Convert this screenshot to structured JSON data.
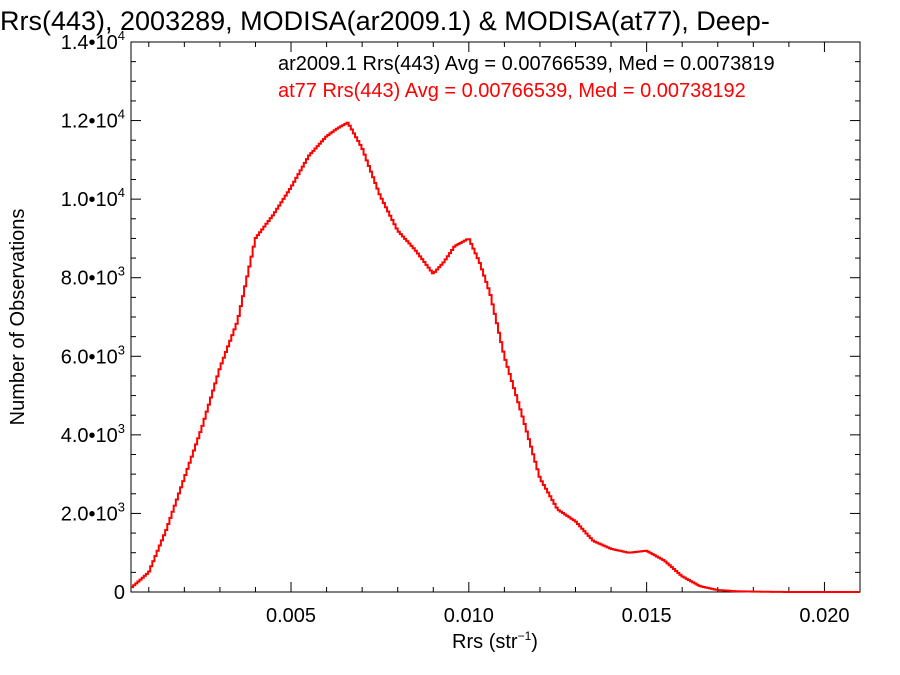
{
  "chart_data": {
    "type": "line",
    "title": "Rrs(443), 2003289, MODISA(ar2009.1) & MODISA(at77), Deep-",
    "xlabel_main": "Rrs (str",
    "xlabel_sup": "−1",
    "xlabel_end": ")",
    "ylabel": "Number of Observations",
    "xlim": [
      0.0005,
      0.021
    ],
    "ylim": [
      0,
      14000
    ],
    "grid": false,
    "x_ticks": [
      {
        "value": 0.005,
        "label": "0.005"
      },
      {
        "value": 0.01,
        "label": "0.010"
      },
      {
        "value": 0.015,
        "label": "0.015"
      },
      {
        "value": 0.02,
        "label": "0.020"
      }
    ],
    "y_ticks": [
      {
        "value": 0,
        "mant": "0",
        "exp": ""
      },
      {
        "value": 2000,
        "mant": "2.0•10",
        "exp": "3"
      },
      {
        "value": 4000,
        "mant": "4.0•10",
        "exp": "3"
      },
      {
        "value": 6000,
        "mant": "6.0•10",
        "exp": "3"
      },
      {
        "value": 8000,
        "mant": "8.0•10",
        "exp": "3"
      },
      {
        "value": 10000,
        "mant": "1.0•10",
        "exp": "4"
      },
      {
        "value": 12000,
        "mant": "1.2•10",
        "exp": "4"
      },
      {
        "value": 14000,
        "mant": "1.4•10",
        "exp": "4"
      }
    ],
    "annotations": [
      {
        "text": "ar2009.1 Rrs(443) Avg = 0.00766539, Med = 0.0073819",
        "color": "#000000"
      },
      {
        "text": "at77 Rrs(443) Avg = 0.00766539, Med = 0.00738192",
        "color": "#ff0000"
      }
    ],
    "series": [
      {
        "color": "#ff0000",
        "x": [
          0.0005,
          0.001,
          0.0015,
          0.002,
          0.0025,
          0.003,
          0.0035,
          0.004,
          0.0045,
          0.005,
          0.0055,
          0.006,
          0.0063,
          0.0066,
          0.007,
          0.0075,
          0.008,
          0.0085,
          0.009,
          0.0093,
          0.0096,
          0.01,
          0.0103,
          0.0106,
          0.011,
          0.0115,
          0.012,
          0.0125,
          0.013,
          0.0135,
          0.014,
          0.0145,
          0.015,
          0.0155,
          0.016,
          0.0165,
          0.017,
          0.0175,
          0.018,
          0.0185,
          0.019,
          0.02,
          0.021
        ],
        "y": [
          100,
          500,
          1600,
          2900,
          4200,
          5700,
          6900,
          9000,
          9600,
          10300,
          11100,
          11600,
          11800,
          11950,
          11300,
          10100,
          9200,
          8700,
          8100,
          8400,
          8800,
          9000,
          8400,
          7600,
          6000,
          4500,
          2900,
          2100,
          1800,
          1300,
          1100,
          1000,
          1050,
          800,
          400,
          150,
          50,
          20,
          10,
          5,
          0,
          0,
          0
        ]
      }
    ]
  }
}
